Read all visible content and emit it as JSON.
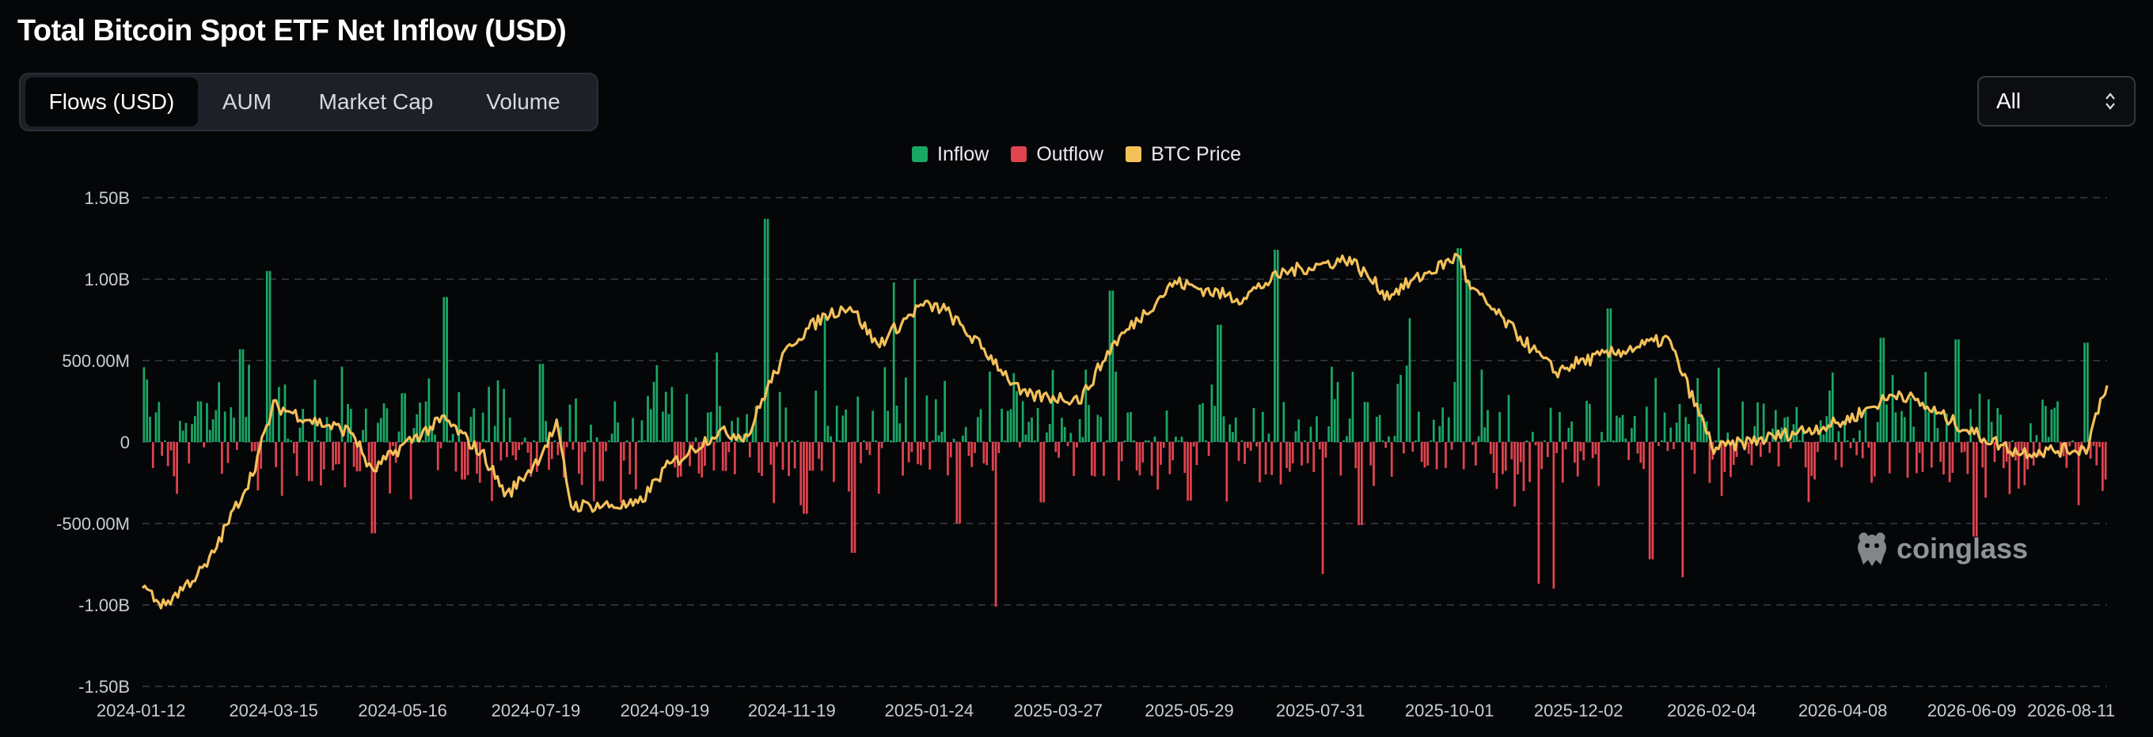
{
  "title": "Total Bitcoin Spot ETF Net Inflow (USD)",
  "tabs": [
    {
      "label": "Flows (USD)",
      "active": true
    },
    {
      "label": "AUM",
      "active": false
    },
    {
      "label": "Market Cap",
      "active": false
    },
    {
      "label": "Volume",
      "active": false
    }
  ],
  "range_select": {
    "value": "All",
    "icon": "chevron-updown-icon"
  },
  "watermark": "coinglass",
  "colors": {
    "inflow": "#1aa766",
    "outflow": "#e0444f",
    "price": "#f3c15a",
    "grid": "#3a3d44",
    "background": "#050608"
  },
  "chart_data": {
    "type": "bar",
    "title": "Total Bitcoin Spot ETF Net Inflow (USD)",
    "legend": [
      "Inflow",
      "Outflow",
      "BTC Price"
    ],
    "legend_position": "top-center",
    "grid": true,
    "y_ticks": [
      "1.50B",
      "1.00B",
      "500.00M",
      "0",
      "-500.00M",
      "-1.00B",
      "-1.50B"
    ],
    "ylim": [
      -1.5,
      1.5
    ],
    "y_unit": "B USD",
    "x_ticks": [
      "2024-01-12",
      "2024-03-15",
      "2024-05-16",
      "2024-07-19",
      "2024-09-19",
      "2024-11-19",
      "2025-01-24",
      "2025-03-27",
      "2025-05-29",
      "2025-07-31",
      "2025-10-01",
      "2025-12-02",
      "2026-02-04",
      "2026-04-08",
      "2026-06-09",
      "2026-08-11"
    ],
    "flow_peaks_B": [
      {
        "x": "2024-01-12",
        "value": 0.46
      },
      {
        "x": "2024-01-17",
        "value": -0.16
      },
      {
        "x": "2024-02-08",
        "value": 0.25
      },
      {
        "x": "2024-02-28",
        "value": 0.57
      },
      {
        "x": "2024-03-12",
        "value": 1.05
      },
      {
        "x": "2024-03-19",
        "value": -0.33
      },
      {
        "x": "2024-04-02",
        "value": -0.24
      },
      {
        "x": "2024-04-25",
        "value": -0.18
      },
      {
        "x": "2024-05-02",
        "value": -0.56
      },
      {
        "x": "2024-05-16",
        "value": 0.3
      },
      {
        "x": "2024-06-05",
        "value": 0.89
      },
      {
        "x": "2024-06-14",
        "value": -0.23
      },
      {
        "x": "2024-07-22",
        "value": 0.48
      },
      {
        "x": "2024-08-20",
        "value": -0.24
      },
      {
        "x": "2024-09-05",
        "value": -0.29
      },
      {
        "x": "2024-10-14",
        "value": 0.55
      },
      {
        "x": "2024-11-07",
        "value": 1.37
      },
      {
        "x": "2024-11-25",
        "value": -0.44
      },
      {
        "x": "2024-12-05",
        "value": 0.77
      },
      {
        "x": "2024-12-19",
        "value": -0.68
      },
      {
        "x": "2025-01-07",
        "value": 0.98
      },
      {
        "x": "2025-01-17",
        "value": 1.0
      },
      {
        "x": "2025-02-07",
        "value": -0.5
      },
      {
        "x": "2025-02-25",
        "value": -1.01
      },
      {
        "x": "2025-03-19",
        "value": -0.37
      },
      {
        "x": "2025-04-22",
        "value": 0.93
      },
      {
        "x": "2025-05-29",
        "value": -0.36
      },
      {
        "x": "2025-06-12",
        "value": 0.72
      },
      {
        "x": "2025-07-10",
        "value": 1.18
      },
      {
        "x": "2025-08-01",
        "value": -0.81
      },
      {
        "x": "2025-08-19",
        "value": -0.51
      },
      {
        "x": "2025-09-12",
        "value": 0.76
      },
      {
        "x": "2025-10-06",
        "value": 1.19
      },
      {
        "x": "2025-10-10",
        "value": 0.99
      },
      {
        "x": "2025-11-13",
        "value": -0.87
      },
      {
        "x": "2025-11-20",
        "value": -0.9
      },
      {
        "x": "2025-12-17",
        "value": 0.82
      },
      {
        "x": "2026-01-06",
        "value": -0.72
      },
      {
        "x": "2026-01-21",
        "value": -0.83
      },
      {
        "x": "2026-04-27",
        "value": 0.64
      },
      {
        "x": "2026-06-02",
        "value": 0.63
      },
      {
        "x": "2026-06-11",
        "value": -0.58
      },
      {
        "x": "2026-07-13",
        "value": 0.26
      },
      {
        "x": "2026-08-03",
        "value": 0.61
      },
      {
        "x": "2026-08-13",
        "value": -0.23
      }
    ],
    "btc_price_normalized": [
      {
        "x": "2024-01-12",
        "value": 0.06
      },
      {
        "x": "2024-01-22",
        "value": 0.0
      },
      {
        "x": "2024-02-12",
        "value": 0.12
      },
      {
        "x": "2024-03-05",
        "value": 0.4
      },
      {
        "x": "2024-03-15",
        "value": 0.6
      },
      {
        "x": "2024-04-05",
        "value": 0.55
      },
      {
        "x": "2024-04-22",
        "value": 0.52
      },
      {
        "x": "2024-05-01",
        "value": 0.4
      },
      {
        "x": "2024-05-16",
        "value": 0.48
      },
      {
        "x": "2024-06-05",
        "value": 0.56
      },
      {
        "x": "2024-06-24",
        "value": 0.45
      },
      {
        "x": "2024-07-05",
        "value": 0.33
      },
      {
        "x": "2024-07-19",
        "value": 0.43
      },
      {
        "x": "2024-07-29",
        "value": 0.54
      },
      {
        "x": "2024-08-05",
        "value": 0.3
      },
      {
        "x": "2024-09-06",
        "value": 0.3
      },
      {
        "x": "2024-09-19",
        "value": 0.41
      },
      {
        "x": "2024-10-14",
        "value": 0.52
      },
      {
        "x": "2024-10-29",
        "value": 0.51
      },
      {
        "x": "2024-11-07",
        "value": 0.65
      },
      {
        "x": "2024-11-19",
        "value": 0.79
      },
      {
        "x": "2024-12-05",
        "value": 0.87
      },
      {
        "x": "2024-12-17",
        "value": 0.9
      },
      {
        "x": "2024-12-30",
        "value": 0.78
      },
      {
        "x": "2025-01-20",
        "value": 0.9
      },
      {
        "x": "2025-01-31",
        "value": 0.89
      },
      {
        "x": "2025-02-25",
        "value": 0.73
      },
      {
        "x": "2025-03-10",
        "value": 0.63
      },
      {
        "x": "2025-04-07",
        "value": 0.62
      },
      {
        "x": "2025-04-22",
        "value": 0.78
      },
      {
        "x": "2025-05-22",
        "value": 0.97
      },
      {
        "x": "2025-06-22",
        "value": 0.92
      },
      {
        "x": "2025-07-14",
        "value": 1.0
      },
      {
        "x": "2025-08-14",
        "value": 1.04
      },
      {
        "x": "2025-09-01",
        "value": 0.93
      },
      {
        "x": "2025-10-06",
        "value": 1.05
      },
      {
        "x": "2025-10-10",
        "value": 0.96
      },
      {
        "x": "2025-11-21",
        "value": 0.7
      },
      {
        "x": "2025-12-02",
        "value": 0.73
      },
      {
        "x": "2026-01-14",
        "value": 0.8
      },
      {
        "x": "2026-02-05",
        "value": 0.47
      },
      {
        "x": "2026-03-01",
        "value": 0.5
      },
      {
        "x": "2026-04-08",
        "value": 0.55
      },
      {
        "x": "2026-05-05",
        "value": 0.64
      },
      {
        "x": "2026-06-09",
        "value": 0.52
      },
      {
        "x": "2026-07-01",
        "value": 0.46
      },
      {
        "x": "2026-08-03",
        "value": 0.47
      },
      {
        "x": "2026-08-11",
        "value": 0.64
      },
      {
        "x": "2026-08-13",
        "value": 0.66
      }
    ]
  }
}
